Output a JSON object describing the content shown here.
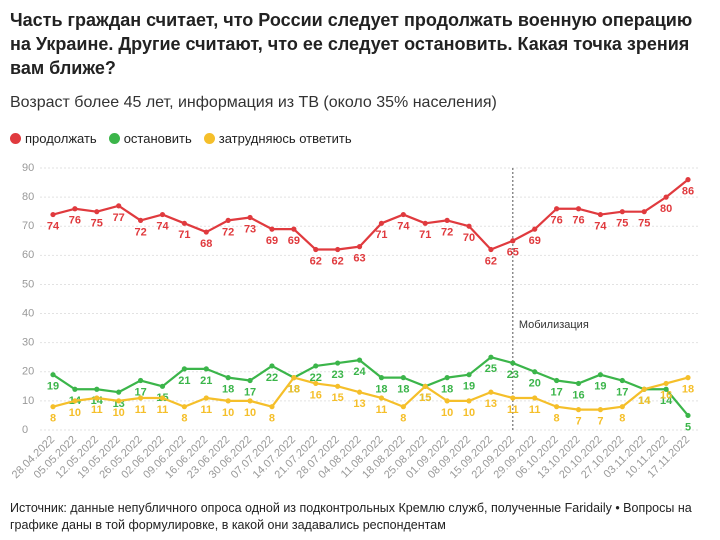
{
  "chart_data": {
    "type": "line",
    "title": "Часть граждан считает, что России следует продолжать военную операцию на Украине. Другие считают, что ее следует остановить. Какая точка зрения вам ближе?",
    "subtitle": "Возраст более 45 лет, информация из ТВ (около 35% населения)",
    "source": "Источник: данные непубличного опроса одной из подконтрольных Кремлю служб, полученные Faridaily • Вопросы на графике даны в той формулировке, в какой они задавались респондентам",
    "categories": [
      "28.04.2022",
      "05.05.2022",
      "12.05.2022",
      "19.05.2022",
      "26.05.2022",
      "02.06.2022",
      "09.06.2022",
      "16.06.2022",
      "23.06.2022",
      "30.06.2022",
      "07.07.2022",
      "14.07.2022",
      "21.07.2022",
      "28.07.2022",
      "04.08.2022",
      "11.08.2022",
      "18.08.2022",
      "25.08.2022",
      "01.09.2022",
      "08.09.2022",
      "15.09.2022",
      "22.09.2022",
      "29.09.2022",
      "06.10.2022",
      "13.10.2022",
      "20.10.2022",
      "27.10.2022",
      "03.11.2022",
      "10.11.2022",
      "17.11.2022"
    ],
    "series": [
      {
        "name": "продолжать",
        "color": "#e03a3e",
        "values": [
          74,
          76,
          75,
          77,
          72,
          74,
          71,
          68,
          72,
          73,
          69,
          69,
          62,
          62,
          63,
          71,
          74,
          71,
          72,
          70,
          62,
          65,
          69,
          76,
          76,
          74,
          75,
          75,
          80,
          86
        ]
      },
      {
        "name": "остановить",
        "color": "#3bb54a",
        "values": [
          19,
          14,
          14,
          13,
          17,
          15,
          21,
          21,
          18,
          17,
          22,
          18,
          22,
          23,
          24,
          18,
          18,
          15,
          18,
          19,
          25,
          23,
          20,
          17,
          16,
          19,
          17,
          14,
          14,
          5
        ]
      },
      {
        "name": "затрудняюсь ответить",
        "color": "#f5bf2a",
        "values": [
          8,
          10,
          11,
          10,
          11,
          11,
          8,
          11,
          10,
          10,
          8,
          18,
          16,
          15,
          13,
          11,
          8,
          15,
          10,
          10,
          13,
          11,
          11,
          8,
          7,
          7,
          8,
          14,
          16,
          18
        ]
      }
    ],
    "ylim": [
      0,
      90
    ],
    "yticks": [
      0,
      10,
      20,
      30,
      40,
      50,
      60,
      70,
      80,
      90
    ],
    "grid": true,
    "annotation": {
      "text": "Мобилизация",
      "x": "22.09.2022"
    }
  }
}
